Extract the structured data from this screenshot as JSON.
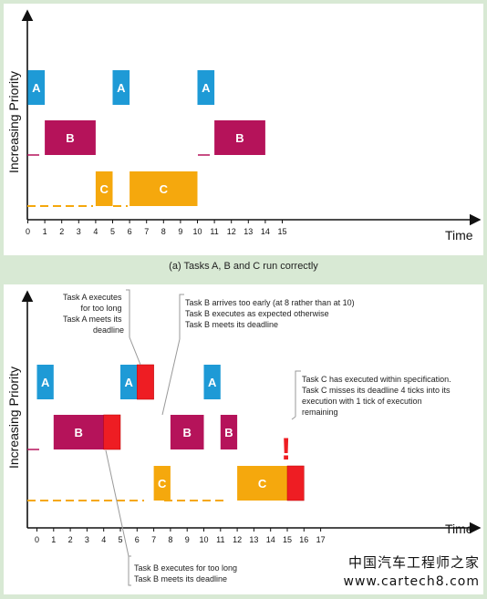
{
  "colors": {
    "taskA": "#1e9ad6",
    "taskB": "#b5135a",
    "taskC": "#f5a80d",
    "overrun": "#ee1d23",
    "axis": "#111111"
  },
  "panel_a": {
    "ylabel": "Increasing Priority",
    "xlabel": "Time",
    "ticks": [
      "0",
      "1",
      "2",
      "3",
      "4",
      "5",
      "6",
      "7",
      "8",
      "9",
      "10",
      "11",
      "12",
      "13",
      "14",
      "15"
    ],
    "caption": "(a) Tasks A, B and C run correctly",
    "blocks": [
      {
        "label": "A",
        "task": "A",
        "start": 0,
        "end": 1
      },
      {
        "label": "A",
        "task": "A",
        "start": 5,
        "end": 6
      },
      {
        "label": "A",
        "task": "A",
        "start": 10,
        "end": 11
      },
      {
        "label": "B",
        "task": "B",
        "start": 1,
        "end": 4
      },
      {
        "label": "B",
        "task": "B",
        "start": 11,
        "end": 14
      },
      {
        "label": "C",
        "task": "C",
        "start": 4,
        "end": 5
      },
      {
        "label": "C",
        "task": "C",
        "start": 6,
        "end": 10
      }
    ]
  },
  "panel_b": {
    "ylabel": "Increasing Priority",
    "xlabel": "Time",
    "ticks": [
      "0",
      "1",
      "2",
      "3",
      "4",
      "5",
      "6",
      "7",
      "8",
      "9",
      "10",
      "11",
      "12",
      "13",
      "14",
      "15",
      "16",
      "17"
    ],
    "blocks": [
      {
        "label": "A",
        "task": "A",
        "start": 0,
        "end": 1
      },
      {
        "label": "A",
        "task": "A",
        "start": 5,
        "end": 6
      },
      {
        "label": "",
        "task": "overrun",
        "row": "A",
        "start": 6,
        "end": 7
      },
      {
        "label": "A",
        "task": "A",
        "start": 10,
        "end": 11
      },
      {
        "label": "B",
        "task": "B",
        "start": 1,
        "end": 4
      },
      {
        "label": "",
        "task": "overrun",
        "row": "B",
        "start": 4,
        "end": 5
      },
      {
        "label": "B",
        "task": "B",
        "start": 8,
        "end": 10
      },
      {
        "label": "B",
        "task": "B",
        "start": 11,
        "end": 12
      },
      {
        "label": "C",
        "task": "C",
        "start": 7,
        "end": 8
      },
      {
        "label": "C",
        "task": "C",
        "start": 12,
        "end": 15
      },
      {
        "label": "",
        "task": "overrun",
        "row": "C",
        "start": 15,
        "end": 16
      }
    ],
    "exclamation": "!",
    "annotations": {
      "a_long": [
        "Task A executes",
        "for too long",
        "Task A meets its",
        "deadline"
      ],
      "b_early": [
        "Task B arrives too early (at 8 rather than at 10)",
        "Task B executes as expected otherwise",
        "Task B meets its deadline"
      ],
      "c_miss": [
        "Task C has executed within specification.",
        "Task C misses its deadline 4 ticks into its",
        "execution with 1 tick of execution",
        "remaining"
      ],
      "b_long": [
        "Task B executes for too long",
        "Task B meets its deadline"
      ]
    }
  },
  "watermark": {
    "line1": "中国汽车工程师之家",
    "line2": "www.cartech8.com"
  }
}
